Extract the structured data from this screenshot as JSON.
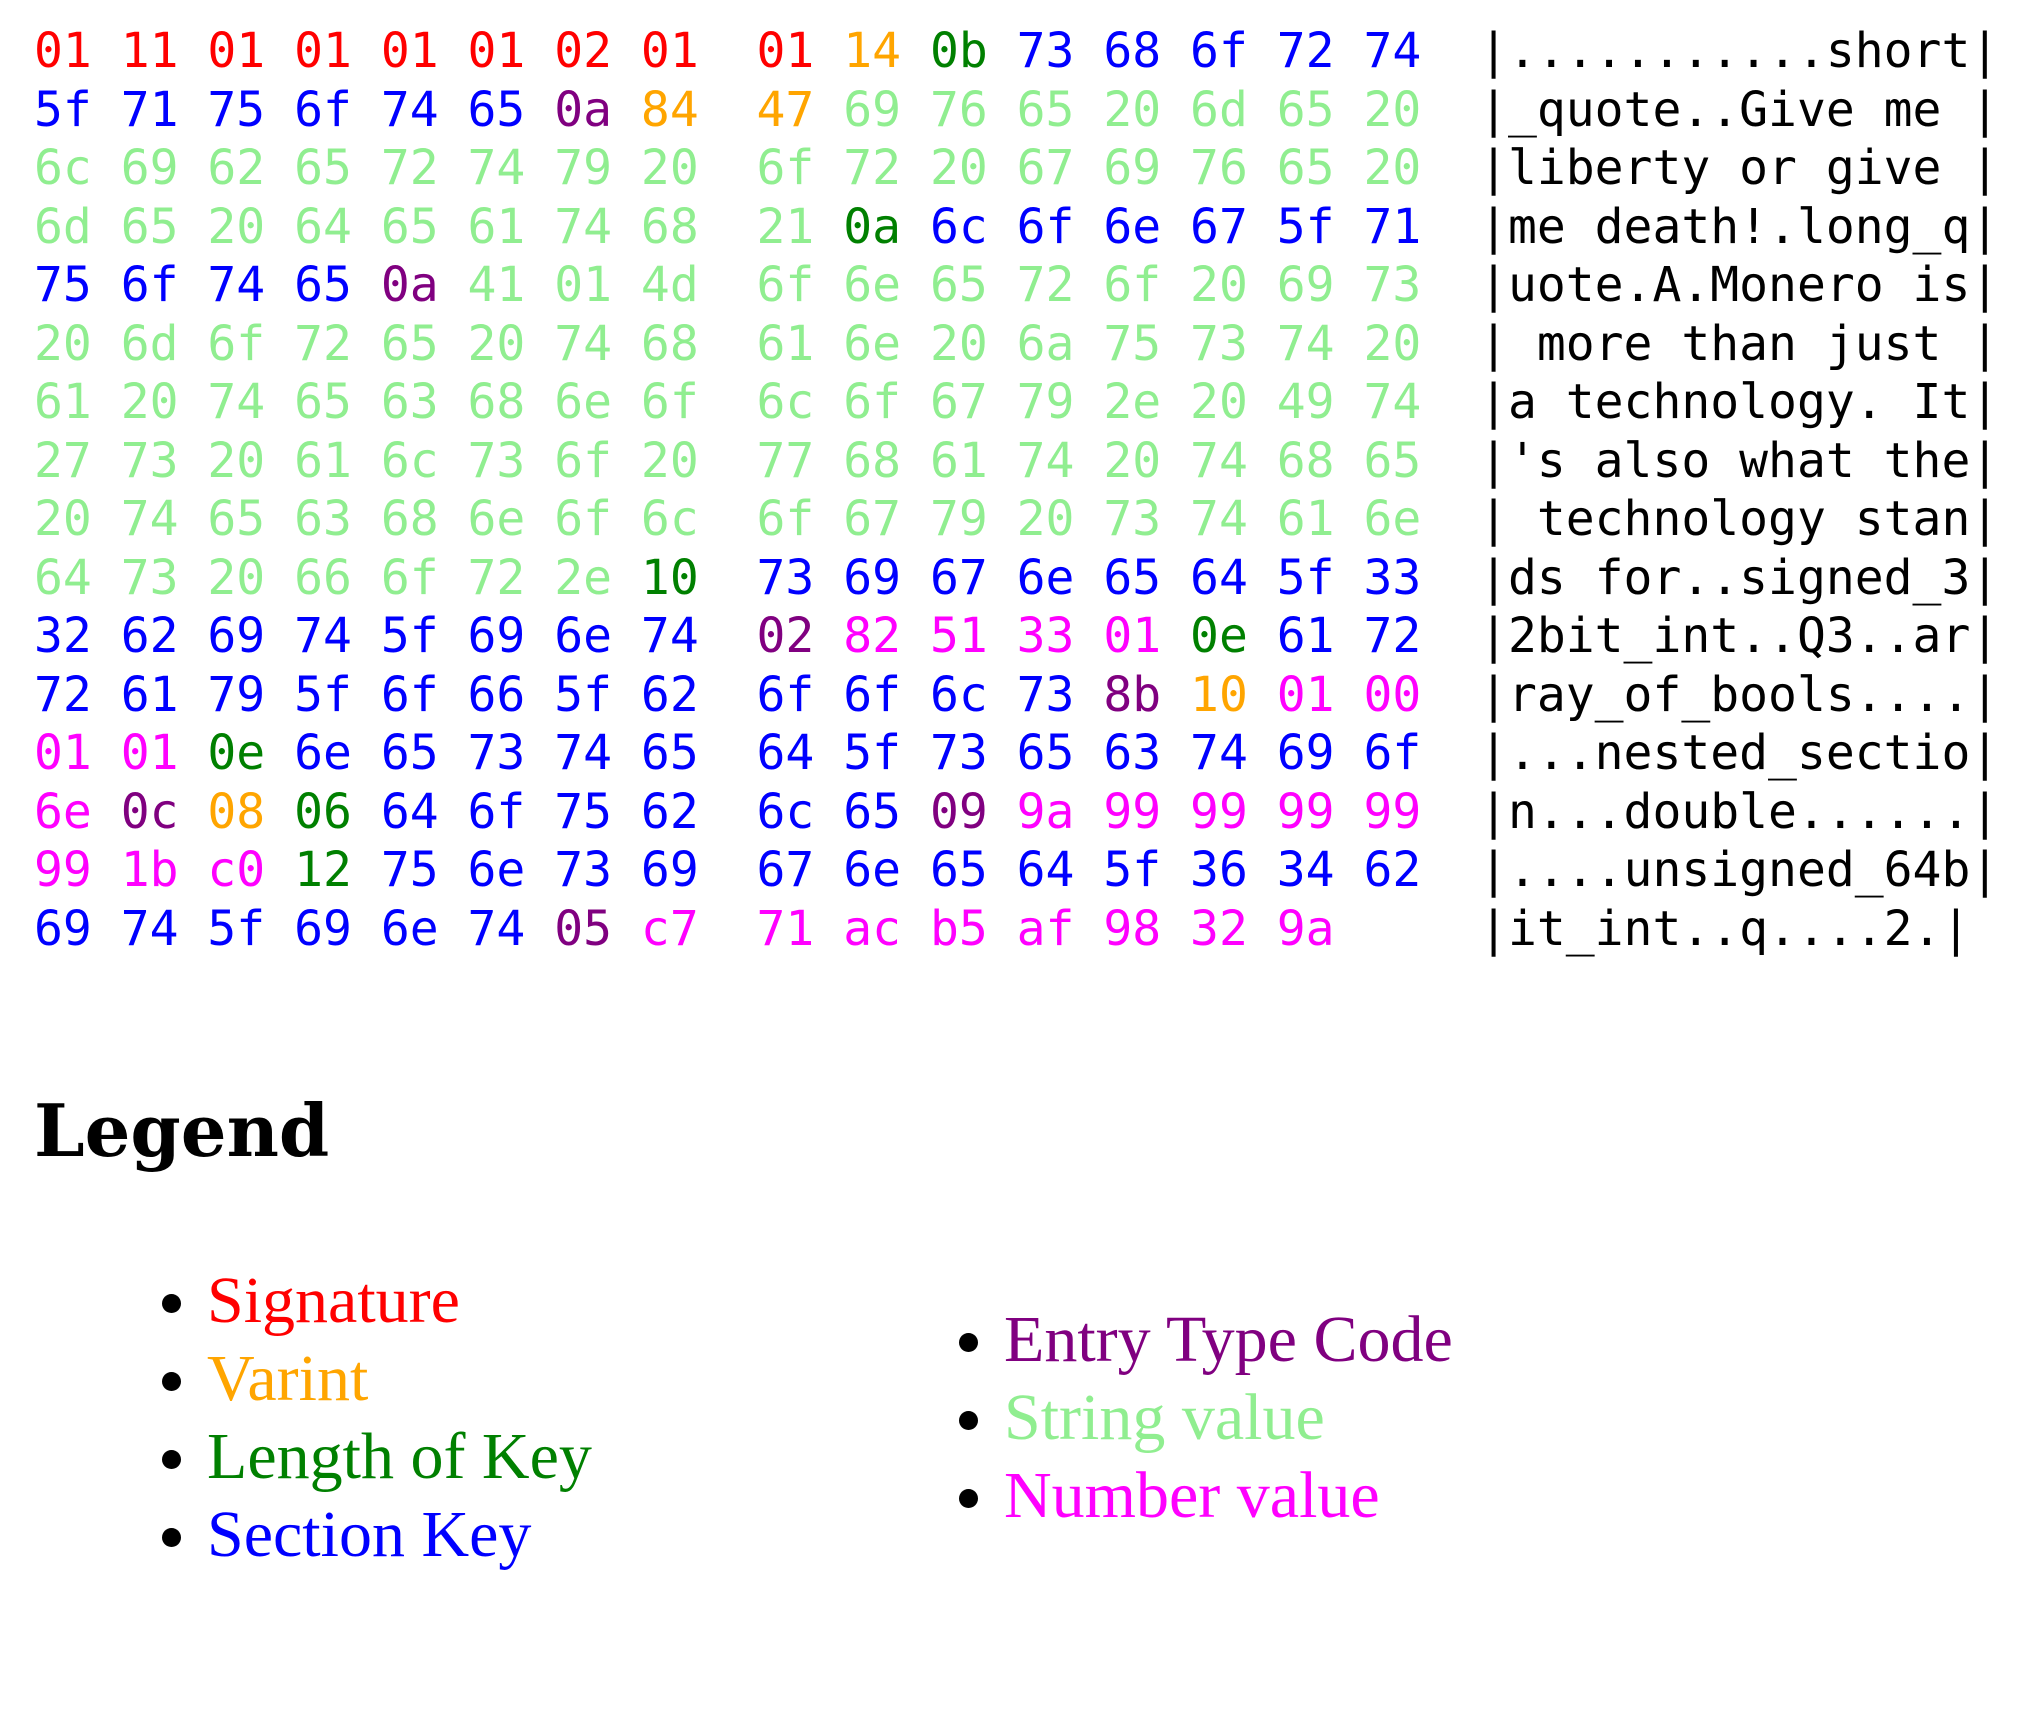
{
  "colors": {
    "S": "#ff0000",
    "V": "#ffa500",
    "L": "#008000",
    "K": "#0000ff",
    "E": "#800080",
    "T": "#90ee90",
    "N": "#ff00ff"
  },
  "hexdump": {
    "rows": [
      {
        "bytes": [
          "01",
          "11",
          "01",
          "01",
          "01",
          "01",
          "02",
          "01",
          "01",
          "14",
          "0b",
          "73",
          "68",
          "6f",
          "72",
          "74"
        ],
        "kinds": "SSSSSSSSSVLKKKKK",
        "ascii": "|...........short|"
      },
      {
        "bytes": [
          "5f",
          "71",
          "75",
          "6f",
          "74",
          "65",
          "0a",
          "84",
          "47",
          "69",
          "76",
          "65",
          "20",
          "6d",
          "65",
          "20"
        ],
        "kinds": "KKKKKKEVVTTTTTTT",
        "ascii": "|_quote..Give me |"
      },
      {
        "bytes": [
          "6c",
          "69",
          "62",
          "65",
          "72",
          "74",
          "79",
          "20",
          "6f",
          "72",
          "20",
          "67",
          "69",
          "76",
          "65",
          "20"
        ],
        "kinds": "TTTTTTTTTTTTTTTT",
        "ascii": "|liberty or give |"
      },
      {
        "bytes": [
          "6d",
          "65",
          "20",
          "64",
          "65",
          "61",
          "74",
          "68",
          "21",
          "0a",
          "6c",
          "6f",
          "6e",
          "67",
          "5f",
          "71"
        ],
        "kinds": "TTTTTTTTTLKKKKKK",
        "ascii": "|me death!.long_q|"
      },
      {
        "bytes": [
          "75",
          "6f",
          "74",
          "65",
          "0a",
          "41",
          "01",
          "4d",
          "6f",
          "6e",
          "65",
          "72",
          "6f",
          "20",
          "69",
          "73"
        ],
        "kinds": "KKKKETTTTTTTTTTT",
        "ascii": "|uote.A.Monero is|"
      },
      {
        "bytes": [
          "20",
          "6d",
          "6f",
          "72",
          "65",
          "20",
          "74",
          "68",
          "61",
          "6e",
          "20",
          "6a",
          "75",
          "73",
          "74",
          "20"
        ],
        "kinds": "TTTTTTTTTTTTTTTT",
        "ascii": "| more than just |"
      },
      {
        "bytes": [
          "61",
          "20",
          "74",
          "65",
          "63",
          "68",
          "6e",
          "6f",
          "6c",
          "6f",
          "67",
          "79",
          "2e",
          "20",
          "49",
          "74"
        ],
        "kinds": "TTTTTTTTTTTTTTTT",
        "ascii": "|a technology. It|"
      },
      {
        "bytes": [
          "27",
          "73",
          "20",
          "61",
          "6c",
          "73",
          "6f",
          "20",
          "77",
          "68",
          "61",
          "74",
          "20",
          "74",
          "68",
          "65"
        ],
        "kinds": "TTTTTTTTTTTTTTTT",
        "ascii": "|'s also what the|"
      },
      {
        "bytes": [
          "20",
          "74",
          "65",
          "63",
          "68",
          "6e",
          "6f",
          "6c",
          "6f",
          "67",
          "79",
          "20",
          "73",
          "74",
          "61",
          "6e"
        ],
        "kinds": "TTTTTTTTTTTTTTTT",
        "ascii": "| technology stan|"
      },
      {
        "bytes": [
          "64",
          "73",
          "20",
          "66",
          "6f",
          "72",
          "2e",
          "10",
          "73",
          "69",
          "67",
          "6e",
          "65",
          "64",
          "5f",
          "33"
        ],
        "kinds": "TTTTTTTLKKKKKKKK",
        "ascii": "|ds for..signed_3|"
      },
      {
        "bytes": [
          "32",
          "62",
          "69",
          "74",
          "5f",
          "69",
          "6e",
          "74",
          "02",
          "82",
          "51",
          "33",
          "01",
          "0e",
          "61",
          "72"
        ],
        "kinds": "KKKKKKKKENNNNLKK",
        "ascii": "|2bit_int..Q3..ar|"
      },
      {
        "bytes": [
          "72",
          "61",
          "79",
          "5f",
          "6f",
          "66",
          "5f",
          "62",
          "6f",
          "6f",
          "6c",
          "73",
          "8b",
          "10",
          "01",
          "00"
        ],
        "kinds": "KKKKKKKKKKKKEVNN",
        "ascii": "|ray_of_bools....|"
      },
      {
        "bytes": [
          "01",
          "01",
          "0e",
          "6e",
          "65",
          "73",
          "74",
          "65",
          "64",
          "5f",
          "73",
          "65",
          "63",
          "74",
          "69",
          "6f"
        ],
        "kinds": "NNLKKKKKKKKKKKKK",
        "ascii": "|...nested_sectio|"
      },
      {
        "bytes": [
          "6e",
          "0c",
          "08",
          "06",
          "64",
          "6f",
          "75",
          "62",
          "6c",
          "65",
          "09",
          "9a",
          "99",
          "99",
          "99",
          "99"
        ],
        "kinds": "NEVLKKKKKKENNNNN",
        "ascii": "|n...double......|"
      },
      {
        "bytes": [
          "99",
          "1b",
          "c0",
          "12",
          "75",
          "6e",
          "73",
          "69",
          "67",
          "6e",
          "65",
          "64",
          "5f",
          "36",
          "34",
          "62"
        ],
        "kinds": "NNNLKKKKKKKKKKKK",
        "ascii": "|....unsigned_64b|"
      },
      {
        "bytes": [
          "69",
          "74",
          "5f",
          "69",
          "6e",
          "74",
          "05",
          "c7",
          "71",
          "ac",
          "b5",
          "af",
          "98",
          "32",
          "9a"
        ],
        "kinds": "KKKKKKENNNNNNNN",
        "ascii": "|it_int..q....2.|"
      }
    ]
  },
  "legend": {
    "title": "Legend",
    "columns": [
      [
        {
          "label": "Signature",
          "kind": "S"
        },
        {
          "label": "Varint",
          "kind": "V"
        },
        {
          "label": "Length of Key",
          "kind": "L"
        },
        {
          "label": "Section Key",
          "kind": "K"
        }
      ],
      [
        {
          "label": "Entry Type Code",
          "kind": "E"
        },
        {
          "label": "String value",
          "kind": "T"
        },
        {
          "label": "Number value",
          "kind": "N"
        }
      ]
    ]
  }
}
